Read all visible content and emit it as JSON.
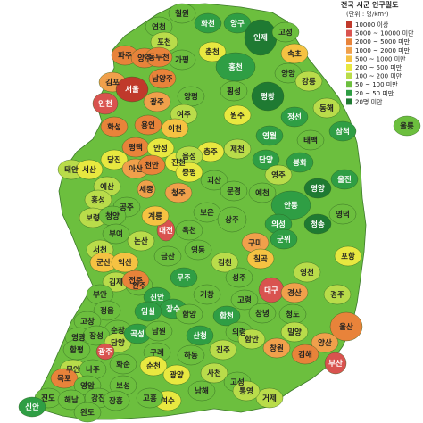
{
  "legend": {
    "title": "전국 시군 인구밀도",
    "unit": "(단위 : 명/km²)",
    "items": [
      {
        "label": "10000 이상",
        "color": "#c0392b"
      },
      {
        "label": "5000 ~ 10000 미만",
        "color": "#d9534f"
      },
      {
        "label": "2000 ~ 5000 미만",
        "color": "#e8833a"
      },
      {
        "label": "1000 ~ 2000 미만",
        "color": "#f0a04b"
      },
      {
        "label": "500 ~ 1000 미만",
        "color": "#f5c242"
      },
      {
        "label": "200 ~ 500 미만",
        "color": "#e8e840"
      },
      {
        "label": "100 ~ 200 미만",
        "color": "#b9dc4a"
      },
      {
        "label": "50 ~ 100 미만",
        "color": "#6cbf3e"
      },
      {
        "label": "20 ~ 50 미만",
        "color": "#2f9e44"
      },
      {
        "label": "20명 미만",
        "color": "#1f7a32"
      }
    ]
  },
  "regions": [
    {
      "name": "철원",
      "color": "#6cbf3e",
      "fill": "#b9dc4a"
    },
    {
      "name": "화천",
      "color": "#2f9e44"
    },
    {
      "name": "양구",
      "color": "#2f9e44"
    },
    {
      "name": "인제",
      "color": "#1f7a32"
    },
    {
      "name": "고성",
      "color": "#6cbf3e"
    },
    {
      "name": "속초",
      "color": "#f5c242"
    },
    {
      "name": "연천",
      "color": "#6cbf3e"
    },
    {
      "name": "포천",
      "color": "#b9dc4a"
    },
    {
      "name": "가평",
      "color": "#6cbf3e"
    },
    {
      "name": "춘천",
      "color": "#e8e840"
    },
    {
      "name": "양양",
      "color": "#6cbf3e"
    },
    {
      "name": "파주",
      "color": "#e8833a"
    },
    {
      "name": "양주",
      "color": "#e8833a"
    },
    {
      "name": "동두천",
      "color": "#e8833a"
    },
    {
      "name": "남양주",
      "color": "#e8833a"
    },
    {
      "name": "홍천",
      "color": "#2f9e44"
    },
    {
      "name": "강릉",
      "color": "#b9dc4a"
    },
    {
      "name": "김포",
      "color": "#f0a04b"
    },
    {
      "name": "서울",
      "color": "#c0392b"
    },
    {
      "name": "양평",
      "color": "#6cbf3e"
    },
    {
      "name": "횡성",
      "color": "#6cbf3e"
    },
    {
      "name": "평창",
      "color": "#1f7a32"
    },
    {
      "name": "동해",
      "color": "#b9dc4a"
    },
    {
      "name": "인천",
      "color": "#d9534f"
    },
    {
      "name": "광주",
      "color": "#f0a04b"
    },
    {
      "name": "여주",
      "color": "#b9dc4a"
    },
    {
      "name": "원주",
      "color": "#e8e840"
    },
    {
      "name": "정선",
      "color": "#2f9e44"
    },
    {
      "name": "삼척",
      "color": "#2f9e44"
    },
    {
      "name": "화성",
      "color": "#e8833a"
    },
    {
      "name": "용인",
      "color": "#e8833a"
    },
    {
      "name": "이천",
      "color": "#f5c242"
    },
    {
      "name": "평택",
      "color": "#e8833a"
    },
    {
      "name": "안성",
      "color": "#e8e840"
    },
    {
      "name": "충주",
      "color": "#e8e840"
    },
    {
      "name": "제천",
      "color": "#b9dc4a"
    },
    {
      "name": "영월",
      "color": "#2f9e44"
    },
    {
      "name": "태백",
      "color": "#6cbf3e"
    },
    {
      "name": "당진",
      "color": "#e8e840"
    },
    {
      "name": "아산",
      "color": "#f0a04b"
    },
    {
      "name": "천안",
      "color": "#e8833a"
    },
    {
      "name": "진천",
      "color": "#e8e840"
    },
    {
      "name": "음성",
      "color": "#b9dc4a"
    },
    {
      "name": "단양",
      "color": "#2f9e44"
    },
    {
      "name": "봉화",
      "color": "#2f9e44"
    },
    {
      "name": "울진",
      "color": "#2f9e44"
    },
    {
      "name": "태안",
      "color": "#b9dc4a"
    },
    {
      "name": "서산",
      "color": "#e8e840"
    },
    {
      "name": "예산",
      "color": "#b9dc4a"
    },
    {
      "name": "세종",
      "color": "#f0a04b"
    },
    {
      "name": "청주",
      "color": "#f0a04b"
    },
    {
      "name": "괴산",
      "color": "#6cbf3e"
    },
    {
      "name": "영주",
      "color": "#b9dc4a"
    },
    {
      "name": "홍성",
      "color": "#b9dc4a"
    },
    {
      "name": "공주",
      "color": "#6cbf3e"
    },
    {
      "name": "증평",
      "color": "#e8e840"
    },
    {
      "name": "보은",
      "color": "#6cbf3e"
    },
    {
      "name": "문경",
      "color": "#6cbf3e"
    },
    {
      "name": "예천",
      "color": "#6cbf3e"
    },
    {
      "name": "안동",
      "color": "#2f9e44"
    },
    {
      "name": "영양",
      "color": "#1f7a32"
    },
    {
      "name": "영덕",
      "color": "#6cbf3e"
    },
    {
      "name": "보령",
      "color": "#b9dc4a"
    },
    {
      "name": "청양",
      "color": "#6cbf3e"
    },
    {
      "name": "부여",
      "color": "#6cbf3e"
    },
    {
      "name": "논산",
      "color": "#b9dc4a"
    },
    {
      "name": "대전",
      "color": "#d9534f"
    },
    {
      "name": "옥천",
      "color": "#6cbf3e"
    },
    {
      "name": "상주",
      "color": "#6cbf3e"
    },
    {
      "name": "의성",
      "color": "#2f9e44"
    },
    {
      "name": "청송",
      "color": "#1f7a32"
    },
    {
      "name": "서천",
      "color": "#b9dc4a"
    },
    {
      "name": "계룡",
      "color": "#f5c242"
    },
    {
      "name": "금산",
      "color": "#6cbf3e"
    },
    {
      "name": "영동",
      "color": "#6cbf3e"
    },
    {
      "name": "구미",
      "color": "#f0a04b"
    },
    {
      "name": "군위",
      "color": "#2f9e44"
    },
    {
      "name": "포항",
      "color": "#e8e840"
    },
    {
      "name": "군산",
      "color": "#f5c242"
    },
    {
      "name": "익산",
      "color": "#f5c242"
    },
    {
      "name": "김천",
      "color": "#b9dc4a"
    },
    {
      "name": "칠곡",
      "color": "#f5c242"
    },
    {
      "name": "영천",
      "color": "#b9dc4a"
    },
    {
      "name": "김제",
      "color": "#b9dc4a"
    },
    {
      "name": "완주",
      "color": "#6cbf3e"
    },
    {
      "name": "전주",
      "color": "#e8833a"
    },
    {
      "name": "무주",
      "color": "#2f9e44"
    },
    {
      "name": "성주",
      "color": "#6cbf3e"
    },
    {
      "name": "대구",
      "color": "#d9534f"
    },
    {
      "name": "경산",
      "color": "#f0a04b"
    },
    {
      "name": "경주",
      "color": "#b9dc4a"
    },
    {
      "name": "부안",
      "color": "#6cbf3e"
    },
    {
      "name": "정읍",
      "color": "#6cbf3e"
    },
    {
      "name": "진안",
      "color": "#2f9e44"
    },
    {
      "name": "장수",
      "color": "#2f9e44"
    },
    {
      "name": "거창",
      "color": "#6cbf3e"
    },
    {
      "name": "고령",
      "color": "#6cbf3e"
    },
    {
      "name": "청도",
      "color": "#6cbf3e"
    },
    {
      "name": "울산",
      "color": "#e8833a"
    },
    {
      "name": "고창",
      "color": "#6cbf3e"
    },
    {
      "name": "순창",
      "color": "#6cbf3e"
    },
    {
      "name": "임실",
      "color": "#2f9e44"
    },
    {
      "name": "함양",
      "color": "#6cbf3e"
    },
    {
      "name": "합천",
      "color": "#2f9e44"
    },
    {
      "name": "창녕",
      "color": "#6cbf3e"
    },
    {
      "name": "밀양",
      "color": "#b9dc4a"
    },
    {
      "name": "양산",
      "color": "#f0a04b"
    },
    {
      "name": "영광",
      "color": "#6cbf3e"
    },
    {
      "name": "장성",
      "color": "#6cbf3e"
    },
    {
      "name": "담양",
      "color": "#b9dc4a"
    },
    {
      "name": "곡성",
      "color": "#2f9e44"
    },
    {
      "name": "남원",
      "color": "#6cbf3e"
    },
    {
      "name": "산청",
      "color": "#2f9e44"
    },
    {
      "name": "의령",
      "color": "#6cbf3e"
    },
    {
      "name": "창원",
      "color": "#f0a04b"
    },
    {
      "name": "김해",
      "color": "#e8833a"
    },
    {
      "name": "부산",
      "color": "#d9534f"
    },
    {
      "name": "함평",
      "color": "#6cbf3e"
    },
    {
      "name": "광주광역",
      "color": "#d9534f",
      "label": "광주"
    },
    {
      "name": "화순",
      "color": "#6cbf3e"
    },
    {
      "name": "구례",
      "color": "#6cbf3e"
    },
    {
      "name": "하동",
      "color": "#6cbf3e"
    },
    {
      "name": "진주",
      "color": "#b9dc4a"
    },
    {
      "name": "함안",
      "color": "#b9dc4a"
    },
    {
      "name": "무안",
      "color": "#b9dc4a"
    },
    {
      "name": "나주",
      "color": "#6cbf3e"
    },
    {
      "name": "순천",
      "color": "#e8e840"
    },
    {
      "name": "광양",
      "color": "#e8e840"
    },
    {
      "name": "사천",
      "color": "#b9dc4a"
    },
    {
      "name": "고성경남",
      "color": "#6cbf3e",
      "label": "고성"
    },
    {
      "name": "거제",
      "color": "#b9dc4a"
    },
    {
      "name": "목포",
      "color": "#e8833a"
    },
    {
      "name": "영암",
      "color": "#6cbf3e"
    },
    {
      "name": "보성",
      "color": "#6cbf3e"
    },
    {
      "name": "여수",
      "color": "#e8e840"
    },
    {
      "name": "남해",
      "color": "#6cbf3e"
    },
    {
      "name": "통영",
      "color": "#b9dc4a"
    },
    {
      "name": "진도",
      "color": "#6cbf3e"
    },
    {
      "name": "해남",
      "color": "#6cbf3e"
    },
    {
      "name": "강진",
      "color": "#6cbf3e"
    },
    {
      "name": "장흥",
      "color": "#6cbf3e"
    },
    {
      "name": "고흥",
      "color": "#6cbf3e"
    },
    {
      "name": "완도",
      "color": "#6cbf3e"
    },
    {
      "name": "신안",
      "color": "#2f9e44"
    },
    {
      "name": "울릉",
      "color": "#6cbf3e"
    }
  ]
}
